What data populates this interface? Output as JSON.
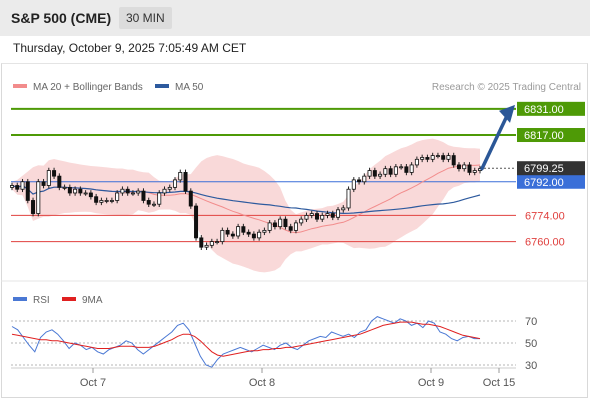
{
  "header": {
    "title": "S&P 500 (CME)",
    "timeframe": "30 MIN"
  },
  "datetime": "Thursday, October 9, 2025 7:05:49 AM CET",
  "credit": "Research © 2025 Trading Central",
  "colors": {
    "green": "#4e9a06",
    "red": "#e0403e",
    "blue": "#3a6fd8",
    "ma50": "#2d5a9e",
    "bollinger": "#f7c9c9",
    "ma20": "#f28c8c",
    "rsi": "#4a78d4",
    "rsi_ma": "#e02020",
    "current_bg": "#333333"
  },
  "chart_data": [
    {
      "type": "candlestick",
      "legend": [
        "MA 20 + Bollinger Bands",
        "MA 50"
      ],
      "ylim": [
        6740,
        6840
      ],
      "current_price": 6799.25,
      "levels": [
        {
          "value": 6831.0,
          "label": "6831.00",
          "kind": "resistance"
        },
        {
          "value": 6817.0,
          "label": "6817.00",
          "kind": "resistance"
        },
        {
          "value": 6792.0,
          "label": "6792.00",
          "kind": "pivot"
        },
        {
          "value": 6774.0,
          "label": "6774.00",
          "kind": "support"
        },
        {
          "value": 6760.0,
          "label": "6760.00",
          "kind": "support"
        }
      ],
      "current_label": "6799.25",
      "projection": {
        "from": 6799,
        "to": 6831
      },
      "x_ticks": [
        "Oct 7",
        "Oct 8",
        "Oct 9",
        "Oct 15"
      ],
      "price_path": [
        6790,
        6788,
        6792,
        6782,
        6775,
        6792,
        6790,
        6798,
        6795,
        6789,
        6789,
        6786,
        6788,
        6786,
        6786,
        6784,
        6781,
        6782,
        6782,
        6782,
        6786,
        6788,
        6786,
        6786,
        6787,
        6782,
        6780,
        6780,
        6786,
        6788,
        6789,
        6793,
        6797,
        6787,
        6779,
        6762,
        6757,
        6758,
        6760,
        6760,
        6766,
        6764,
        6763,
        6768,
        6765,
        6764,
        6762,
        6765,
        6766,
        6770,
        6768,
        6772,
        6768,
        6766,
        6770,
        6772,
        6774,
        6775,
        6772,
        6774,
        6775,
        6773,
        6777,
        6778,
        6788,
        6793,
        6792,
        6795,
        6798,
        6795,
        6796,
        6799,
        6796,
        6800,
        6800,
        6797,
        6801,
        6804,
        6805,
        6804,
        6806,
        6806,
        6804,
        6806,
        6801,
        6799,
        6801,
        6797,
        6798,
        6799
      ]
    },
    {
      "type": "line",
      "legend": [
        "RSI",
        "9MA"
      ],
      "ylim": [
        20,
        80
      ],
      "y_ticks": [
        70,
        50,
        30
      ],
      "series": [
        {
          "name": "RSI",
          "values": [
            65,
            62,
            55,
            48,
            42,
            55,
            60,
            62,
            58,
            52,
            45,
            50,
            48,
            44,
            46,
            42,
            40,
            44,
            46,
            48,
            52,
            50,
            44,
            40,
            44,
            48,
            52,
            56,
            60,
            66,
            68,
            62,
            50,
            38,
            30,
            28,
            35,
            40,
            42,
            44,
            46,
            44,
            42,
            45,
            48,
            46,
            44,
            48,
            50,
            46,
            44,
            48,
            52,
            54,
            56,
            55,
            60,
            58,
            56,
            58,
            55,
            60,
            62,
            70,
            74,
            72,
            70,
            68,
            72,
            70,
            66,
            68,
            64,
            70,
            68,
            60,
            58,
            54,
            52,
            55,
            56,
            54,
            54
          ]
        },
        {
          "name": "9MA",
          "values": [
            58,
            57,
            56,
            55,
            54,
            53,
            53,
            52,
            52,
            51,
            50,
            49,
            48,
            47,
            46,
            45,
            45,
            45,
            46,
            47,
            47,
            47,
            46,
            46,
            46,
            47,
            49,
            51,
            53,
            56,
            58,
            58,
            56,
            52,
            47,
            42,
            39,
            38,
            39,
            40,
            41,
            42,
            43,
            43,
            44,
            44,
            45,
            45,
            46,
            46,
            47,
            48,
            49,
            50,
            51,
            52,
            53,
            54,
            55,
            56,
            57,
            58,
            60,
            62,
            64,
            66,
            67,
            68,
            69,
            69,
            69,
            68,
            67,
            67,
            66,
            65,
            63,
            61,
            59,
            57,
            56,
            55,
            54
          ]
        }
      ]
    }
  ]
}
